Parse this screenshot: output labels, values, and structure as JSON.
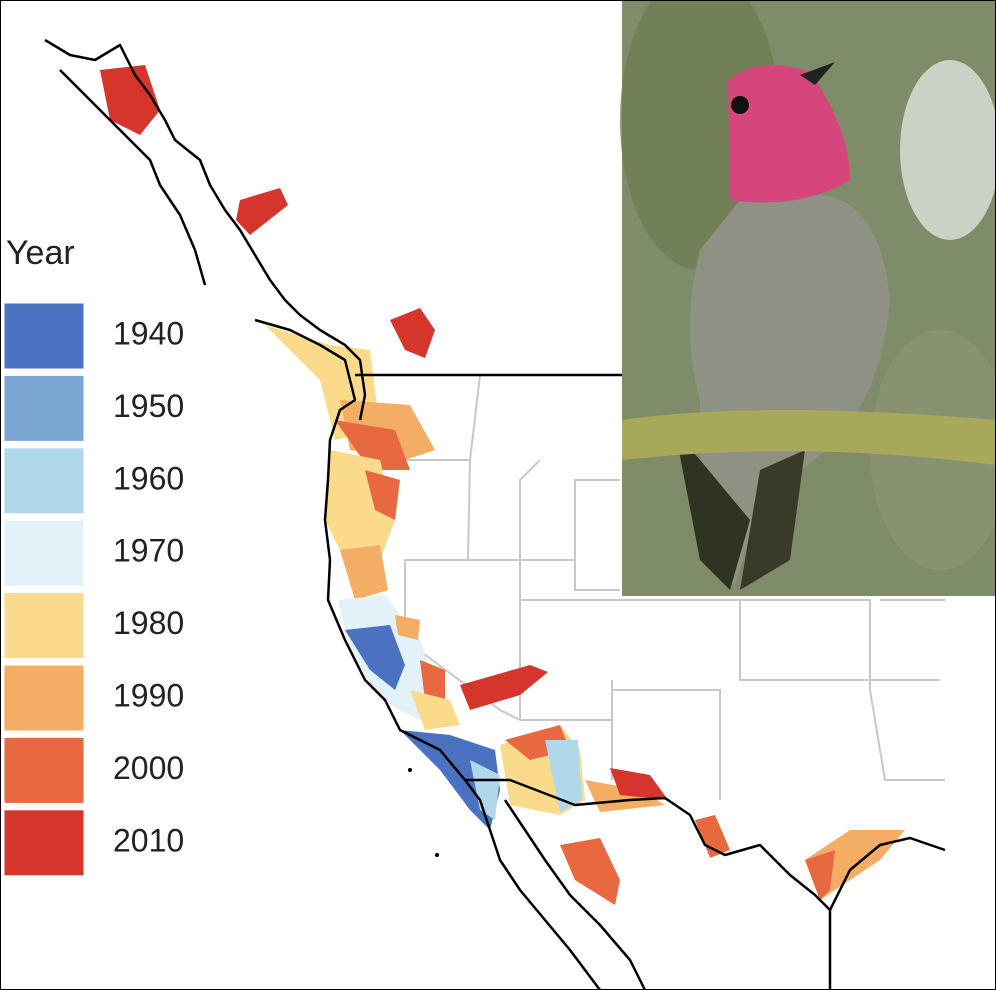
{
  "legend": {
    "title": "Year",
    "items": [
      {
        "label": "1940",
        "color": "#4a72c0"
      },
      {
        "label": "1950",
        "color": "#7ba6d4"
      },
      {
        "label": "1960",
        "color": "#b0d8ea"
      },
      {
        "label": "1970",
        "color": "#e3f1f8"
      },
      {
        "label": "1980",
        "color": "#f9db8b"
      },
      {
        "label": "1990",
        "color": "#f3ad64"
      },
      {
        "label": "2000",
        "color": "#e8693f"
      },
      {
        "label": "2010",
        "color": "#d5352a"
      }
    ]
  }
}
